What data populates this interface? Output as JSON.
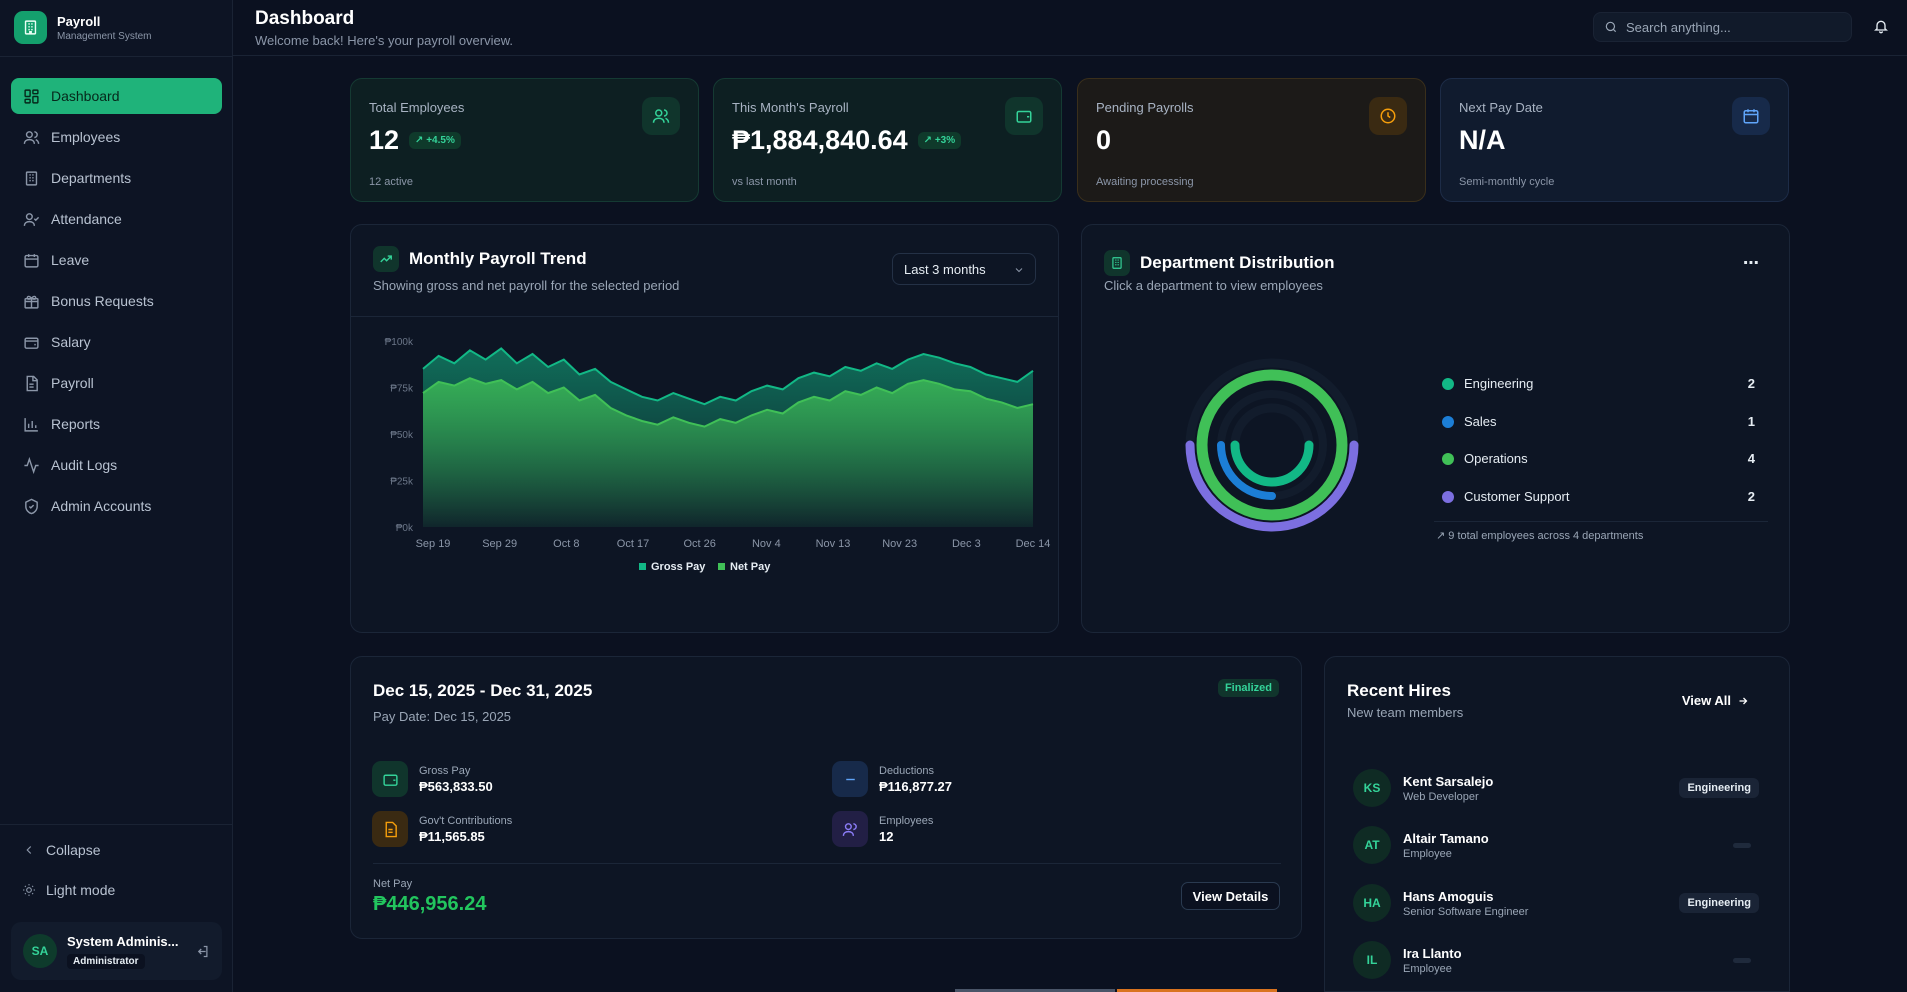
{
  "brand": {
    "title": "Payroll",
    "subtitle": "Management System"
  },
  "nav": [
    {
      "label": "Dashboard",
      "icon": "dashboard-icon",
      "active": true
    },
    {
      "label": "Employees",
      "icon": "users-icon"
    },
    {
      "label": "Departments",
      "icon": "building-icon"
    },
    {
      "label": "Attendance",
      "icon": "user-check-icon"
    },
    {
      "label": "Leave",
      "icon": "calendar-icon"
    },
    {
      "label": "Bonus Requests",
      "icon": "gift-icon"
    },
    {
      "label": "Salary",
      "icon": "wallet-icon"
    },
    {
      "label": "Payroll",
      "icon": "file-icon"
    },
    {
      "label": "Reports",
      "icon": "bar-chart-icon"
    },
    {
      "label": "Audit Logs",
      "icon": "activity-icon"
    },
    {
      "label": "Admin Accounts",
      "icon": "shield-icon"
    }
  ],
  "sidebar_footer": {
    "collapse": "Collapse",
    "theme": "Light mode"
  },
  "user": {
    "initials": "SA",
    "name": "System Adminis...",
    "role": "Administrator"
  },
  "header": {
    "title": "Dashboard",
    "subtitle": "Welcome back! Here's your payroll overview.",
    "search_placeholder": "Search anything..."
  },
  "stats": [
    {
      "label": "Total Employees",
      "value": "12",
      "badge": "+4.5%",
      "sub": "12 active",
      "icon": "users-icon",
      "accent": "#34d399"
    },
    {
      "label": "This Month's Payroll",
      "value": "₱1,884,840.64",
      "badge": "+3%",
      "sub": "vs last month",
      "icon": "wallet-icon",
      "accent": "#34d399"
    },
    {
      "label": "Pending Payrolls",
      "value": "0",
      "badge": "",
      "sub": "Awaiting processing",
      "icon": "clock-icon",
      "accent": "#f59e0b"
    },
    {
      "label": "Next Pay Date",
      "value": "N/A",
      "badge": "",
      "sub": "Semi-monthly cycle",
      "icon": "calendar-icon",
      "accent": "#60a5fa"
    }
  ],
  "trend": {
    "title": "Monthly Payroll Trend",
    "subtitle": "Showing gross and net payroll for the selected period",
    "range": "Last 3 months"
  },
  "chart_data": {
    "type": "area",
    "x_ticks": [
      "Sep 19",
      "Sep 29",
      "Oct 8",
      "Oct 17",
      "Oct 26",
      "Nov 4",
      "Nov 13",
      "Nov 23",
      "Dec 3",
      "Dec 14"
    ],
    "y_ticks": [
      "₱100k",
      "₱75k",
      "₱50k",
      "₱25k",
      "₱0k"
    ],
    "ylim": [
      0,
      100000
    ],
    "legend_position": "bottom",
    "series": [
      {
        "name": "Gross Pay",
        "color": "#12b886",
        "values": [
          85000,
          92000,
          88000,
          95000,
          90000,
          96000,
          88000,
          93000,
          86000,
          90000,
          82000,
          85000,
          78000,
          74000,
          70000,
          68000,
          72000,
          69000,
          66000,
          70000,
          68000,
          73000,
          76000,
          74000,
          80000,
          83000,
          81000,
          86000,
          84000,
          88000,
          85000,
          90000,
          93000,
          91000,
          88000,
          86000,
          82000,
          80000,
          78000,
          84000
        ]
      },
      {
        "name": "Net Pay",
        "color": "#40c057",
        "values": [
          72000,
          78000,
          76000,
          80000,
          77000,
          79000,
          74000,
          78000,
          72000,
          75000,
          68000,
          71000,
          64000,
          60000,
          57000,
          55000,
          59000,
          56000,
          54000,
          58000,
          56000,
          60000,
          63000,
          61000,
          67000,
          70000,
          68000,
          73000,
          71000,
          75000,
          72000,
          77000,
          79000,
          77000,
          74000,
          73000,
          69000,
          67000,
          64000,
          66000
        ]
      }
    ]
  },
  "dept": {
    "title": "Department Distribution",
    "subtitle": "Click a department to view employees",
    "footer": "9 total employees across 4 departments",
    "items": [
      {
        "name": "Engineering",
        "count": "2",
        "color": "#12b886"
      },
      {
        "name": "Sales",
        "count": "1",
        "color": "#1c7ed6"
      },
      {
        "name": "Operations",
        "count": "4",
        "color": "#40c057"
      },
      {
        "name": "Customer Support",
        "count": "2",
        "color": "#7c6fe0"
      }
    ]
  },
  "period": {
    "title": "Dec 15, 2025 - Dec 31, 2025",
    "pay_date": "Pay Date: Dec 15, 2025",
    "status": "Finalized",
    "gross_label": "Gross Pay",
    "gross_value": "₱563,833.50",
    "deductions_label": "Deductions",
    "deductions_value": "₱116,877.27",
    "gov_label": "Gov't Contributions",
    "gov_value": "₱11,565.85",
    "employees_label": "Employees",
    "employees_value": "12",
    "net_label": "Net Pay",
    "net_value": "₱446,956.24",
    "button": "View Details"
  },
  "hires": {
    "title": "Recent Hires",
    "subtitle": "New team members",
    "view_all": "View All",
    "items": [
      {
        "initials": "KS",
        "name": "Kent Sarsalejo",
        "role": "Web Developer",
        "dept": "Engineering"
      },
      {
        "initials": "AT",
        "name": "Altair Tamano",
        "role": "Employee",
        "dept": ""
      },
      {
        "initials": "HA",
        "name": "Hans Amoguis",
        "role": "Senior Software Engineer",
        "dept": "Engineering"
      },
      {
        "initials": "IL",
        "name": "Ira Llanto",
        "role": "Employee",
        "dept": ""
      }
    ]
  }
}
